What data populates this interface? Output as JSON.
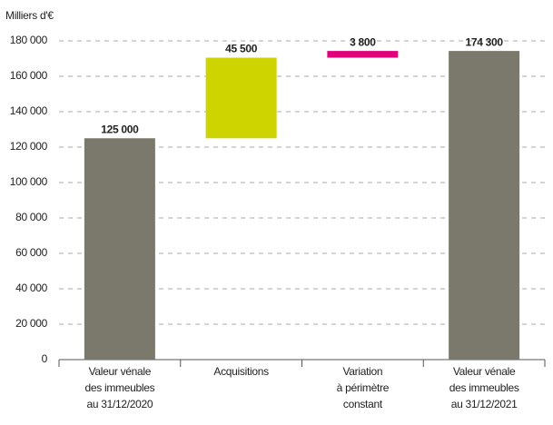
{
  "chart_data": {
    "type": "waterfall",
    "y_label": "Milliers d'€",
    "categories": [
      "Valeur vénale\ndes immeubles\nau 31/12/2020",
      "Acquisitions",
      "Variation\nà périmètre\nconstant",
      "Valeur vénale\ndes immeubles\nau 31/12/2021"
    ],
    "measures": [
      "absolute",
      "relative",
      "relative",
      "total"
    ],
    "values": [
      125000,
      45500,
      3800,
      174300
    ],
    "value_labels": [
      "125 000",
      "45 500",
      "3 800",
      "174 300"
    ],
    "colors": [
      "#7b786c",
      "#cdd400",
      "#e2007a",
      "#7b786c"
    ],
    "ylim": [
      0,
      180000
    ],
    "yticks": [
      0,
      {
        "value": 20000,
        "label": "20 000"
      },
      {
        "value": 40000,
        "label": "40 000"
      },
      {
        "value": 60000,
        "label": "60 000"
      },
      {
        "value": 80000,
        "label": "80 000"
      },
      {
        "value": 100000,
        "label": "100 000"
      },
      {
        "value": 120000,
        "label": "120 000"
      },
      {
        "value": 140000,
        "label": "140 000"
      },
      {
        "value": 160000,
        "label": "160 000"
      },
      {
        "value": 180000,
        "label": "180 000"
      }
    ],
    "grid": true
  }
}
